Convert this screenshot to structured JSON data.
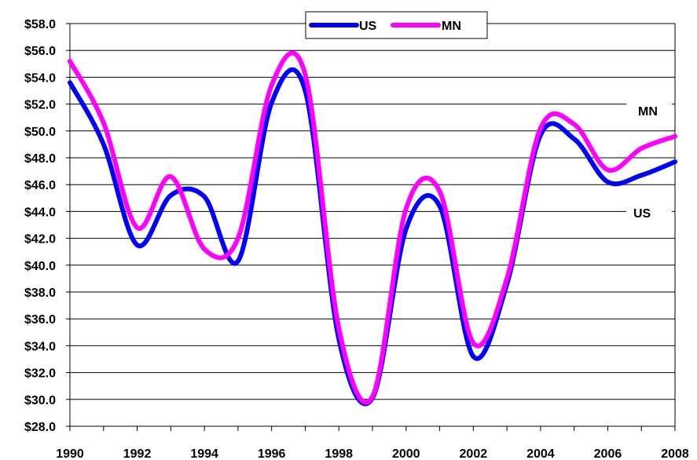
{
  "chart_data": {
    "type": "line",
    "title": "",
    "xlabel": "",
    "ylabel": "",
    "x": [
      1990,
      1991,
      1992,
      1993,
      1994,
      1995,
      1996,
      1997,
      1998,
      1999,
      2000,
      2001,
      2002,
      2003,
      2004,
      2005,
      2006,
      2007,
      2008
    ],
    "x_tick_labels": [
      "1990",
      "1992",
      "1994",
      "1996",
      "1998",
      "2000",
      "2002",
      "2004",
      "2006",
      "2008"
    ],
    "y_tick_labels": [
      "$28.0",
      "$30.0",
      "$32.0",
      "$34.0",
      "$36.0",
      "$38.0",
      "$40.0",
      "$42.0",
      "$44.0",
      "$46.0",
      "$48.0",
      "$50.0",
      "$52.0",
      "$54.0",
      "$56.0",
      "$58.0"
    ],
    "xlim": [
      1990,
      2008
    ],
    "ylim": [
      28,
      58
    ],
    "y_step": 2,
    "grid": "horizontal",
    "legend_position": "top-center",
    "series": [
      {
        "name": "US",
        "color": "#0000ff",
        "values": [
          53.6,
          49.0,
          41.5,
          45.2,
          45.1,
          40.3,
          52.1,
          53.0,
          34.5,
          30.1,
          42.7,
          44.4,
          33.2,
          38.6,
          49.7,
          49.4,
          46.2,
          46.7,
          47.7
        ]
      },
      {
        "name": "MN",
        "color": "#ff00ff",
        "values": [
          55.2,
          50.6,
          42.8,
          46.6,
          41.2,
          42.0,
          53.4,
          54.2,
          35.3,
          30.2,
          44.2,
          45.5,
          34.2,
          39.0,
          50.2,
          50.5,
          47.1,
          48.7,
          49.6
        ]
      }
    ],
    "annotations": [
      {
        "text": "MN"
      },
      {
        "text": "US"
      }
    ]
  }
}
